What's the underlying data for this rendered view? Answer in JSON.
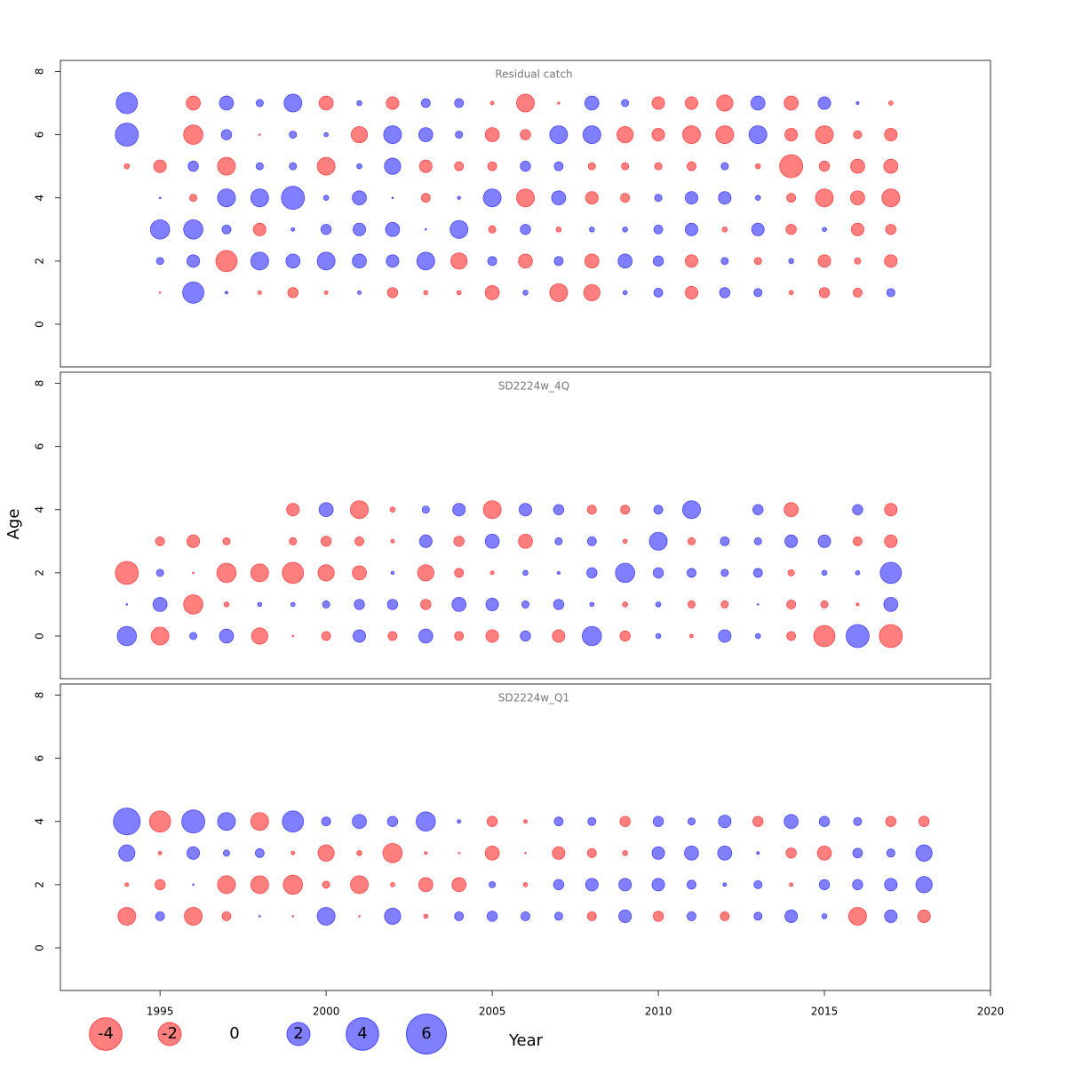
{
  "xlabel": "Year",
  "ylabel": "Age",
  "colors": {
    "positive": "#0000ff",
    "negative": "#ff0000"
  },
  "legend": [
    -4,
    -2,
    0,
    2,
    4,
    6
  ],
  "chart_data": [
    {
      "type": "bubble",
      "title": "Residual catch",
      "x": [
        1994,
        1995,
        1996,
        1997,
        1998,
        1999,
        2000,
        2001,
        2002,
        2003,
        2004,
        2005,
        2006,
        2007,
        2008,
        2009,
        2010,
        2011,
        2012,
        2013,
        2014,
        2015,
        2016,
        2017
      ],
      "y": [
        7,
        6,
        5,
        4,
        3,
        2,
        1
      ],
      "values": [
        [
          1.7,
          null,
          -0.75,
          0.75,
          0.2,
          1.2,
          -0.75,
          0.1,
          -0.6,
          0.3,
          0.3,
          -0.05,
          -1.2,
          -0.02,
          0.75,
          0.2,
          -0.6,
          -0.6,
          -1,
          0.75,
          -0.75,
          0.6,
          0.03,
          -0.07
        ],
        [
          2,
          null,
          -1.4,
          0.4,
          -0.01,
          0.2,
          0.07,
          -1,
          1.2,
          0.75,
          0.2,
          -0.75,
          -0.4,
          1.2,
          1.2,
          -1,
          -0.6,
          -1.2,
          -1.2,
          1.2,
          -0.6,
          -1.2,
          -0.25,
          -0.6
        ],
        [
          -0.1,
          -0.6,
          0.4,
          -1.2,
          0.2,
          0.2,
          -1.2,
          0.1,
          1,
          -0.6,
          -0.3,
          -0.3,
          0.4,
          0.3,
          -0.2,
          -0.2,
          -0.2,
          -0.3,
          0.2,
          -0.1,
          -2,
          -0.4,
          -0.75,
          -0.75
        ],
        [
          null,
          0.01,
          -0.2,
          1.2,
          1.2,
          2,
          0.1,
          0.75,
          0.01,
          -0.3,
          0.04,
          1.2,
          -1.2,
          0.75,
          -0.6,
          -0.3,
          0.2,
          0.6,
          0.6,
          0.1,
          -0.3,
          -1.2,
          -0.75,
          -1.2
        ],
        [
          null,
          1.4,
          1.4,
          0.3,
          -0.6,
          0.05,
          0.4,
          0.6,
          0.75,
          0.01,
          1.2,
          -0.2,
          0.4,
          -0.1,
          0.1,
          0.1,
          0.3,
          0.6,
          -0.1,
          0.6,
          -0.4,
          0.07,
          -0.6,
          -0.4
        ],
        [
          null,
          0.2,
          0.6,
          -1.7,
          1.2,
          0.75,
          1.2,
          0.75,
          0.6,
          1.2,
          -1,
          0.3,
          -0.75,
          0.3,
          -0.75,
          0.75,
          0.4,
          -0.6,
          0.2,
          -0.2,
          0.1,
          -0.6,
          -0.15,
          -0.6
        ],
        [
          null,
          -0.01,
          1.7,
          0.03,
          -0.05,
          -0.4,
          -0.05,
          0.05,
          -0.4,
          -0.07,
          -0.07,
          -0.75,
          0.1,
          -1.2,
          -1,
          0.07,
          0.3,
          -0.6,
          0.4,
          0.25,
          -0.07,
          -0.4,
          -0.3,
          0.25
        ]
      ],
      "xlim": [
        1992,
        2020
      ],
      "ylim": [
        -1.35,
        8.35
      ],
      "yticks": [
        0,
        2,
        4,
        6,
        8
      ]
    },
    {
      "type": "bubble",
      "title": "SD2224w_4Q",
      "x": [
        1994,
        1995,
        1996,
        1997,
        1998,
        1999,
        2000,
        2001,
        2002,
        2003,
        2004,
        2005,
        2006,
        2007,
        2008,
        2009,
        2010,
        2011,
        2012,
        2013,
        2014,
        2015,
        2016,
        2017
      ],
      "y": [
        4,
        3,
        2,
        1,
        0
      ],
      "values": [
        [
          null,
          null,
          null,
          null,
          null,
          -0.6,
          0.75,
          -1.2,
          -0.1,
          0.2,
          0.6,
          -1.2,
          0.6,
          0.4,
          -0.3,
          -0.3,
          0.3,
          1.2,
          null,
          0.4,
          -0.75,
          null,
          0.4,
          -0.6
        ],
        [
          null,
          -0.3,
          -0.6,
          -0.2,
          null,
          -0.2,
          -0.4,
          -0.3,
          -0.05,
          0.6,
          -0.4,
          0.75,
          -0.75,
          0.2,
          0.3,
          -0.07,
          1.2,
          -0.2,
          0.3,
          0.2,
          0.6,
          0.6,
          -0.3,
          -0.6
        ],
        [
          -2,
          0.2,
          -0.01,
          -1.4,
          -1.2,
          -1.7,
          -1,
          -0.75,
          0.04,
          -1,
          -0.3,
          -0.05,
          0.1,
          0.03,
          0.4,
          1.4,
          0.4,
          0.3,
          0.2,
          0.3,
          -0.15,
          0.1,
          0.07,
          1.7
        ],
        [
          0.01,
          0.75,
          -1.4,
          -0.1,
          0.07,
          0.07,
          0.2,
          0.4,
          0.4,
          -0.4,
          0.75,
          0.6,
          0.2,
          0.4,
          0.07,
          -0.1,
          0.1,
          -0.2,
          -0.2,
          0.01,
          -0.3,
          -0.2,
          -0.03,
          0.75
        ],
        [
          1.4,
          -1.2,
          0.2,
          0.75,
          -1,
          -0.01,
          -0.3,
          0.6,
          -0.3,
          0.75,
          -0.3,
          -0.6,
          0.4,
          -0.6,
          1.4,
          -0.4,
          0.1,
          -0.05,
          0.6,
          0.1,
          -0.3,
          -1.7,
          2,
          -2
        ]
      ],
      "xlim": [
        1992,
        2020
      ],
      "ylim": [
        -1.35,
        8.35
      ],
      "yticks": [
        0,
        2,
        4,
        6,
        8
      ]
    },
    {
      "type": "bubble",
      "title": "SD2224w_Q1",
      "x": [
        1994,
        1995,
        1996,
        1997,
        1998,
        1999,
        2000,
        2001,
        2002,
        2003,
        2004,
        2005,
        2006,
        2007,
        2008,
        2009,
        2010,
        2011,
        2012,
        2013,
        2014,
        2015,
        2016,
        2017,
        2018
      ],
      "y": [
        4,
        3,
        2,
        1
      ],
      "values": [
        [
          2.7,
          -1.7,
          2,
          1.2,
          -1.2,
          1.7,
          0.3,
          0.75,
          0.4,
          1.4,
          0.05,
          -0.4,
          -0.05,
          0.3,
          0.25,
          -0.4,
          0.4,
          0.2,
          0.6,
          -0.4,
          0.75,
          0.4,
          0.25,
          -0.4,
          -0.4
        ],
        [
          1,
          -0.05,
          0.6,
          0.15,
          0.3,
          -0.05,
          -1,
          -0.1,
          -1.4,
          -0.03,
          -0.01,
          -0.75,
          -0.01,
          -0.6,
          -0.3,
          -0.1,
          0.6,
          0.75,
          0.75,
          0.03,
          -0.4,
          -0.75,
          0.35,
          0.25,
          1
        ],
        [
          -0.05,
          -0.4,
          0.01,
          -1.2,
          -1.2,
          -1.4,
          -0.2,
          -1.2,
          -0.07,
          -0.75,
          -0.75,
          0.15,
          -0.07,
          0.4,
          0.6,
          0.6,
          0.6,
          0.3,
          0.05,
          0.25,
          -0.05,
          0.4,
          0.4,
          0.6,
          1
        ],
        [
          -1.2,
          0.3,
          -1.2,
          -0.3,
          0.01,
          -0.01,
          1.2,
          -0.01,
          1,
          -0.07,
          0.3,
          0.4,
          0.3,
          0.25,
          -0.3,
          0.6,
          -0.4,
          0.3,
          -0.3,
          0.25,
          0.6,
          0.1,
          -1.2,
          0.6,
          -0.6
        ]
      ],
      "xlim": [
        1992,
        2020
      ],
      "ylim": [
        -1.35,
        8.35
      ],
      "yticks": [
        0,
        2,
        4,
        6,
        8
      ],
      "xticks": [
        1995,
        2000,
        2005,
        2010,
        2015,
        2020
      ]
    }
  ]
}
